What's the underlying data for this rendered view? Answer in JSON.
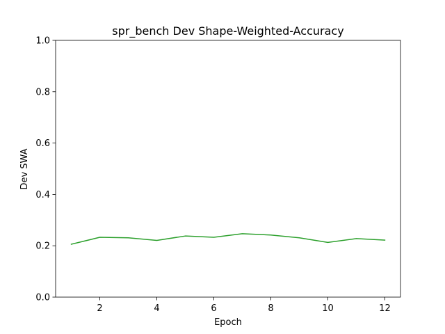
{
  "chart_data": {
    "type": "line",
    "title": "spr_bench Dev Shape-Weighted-Accuracy",
    "xlabel": "Epoch",
    "ylabel": "Dev SWA",
    "xlim": [
      0.45,
      12.55
    ],
    "ylim": [
      0.0,
      1.0
    ],
    "x_ticks": [
      2,
      4,
      6,
      8,
      10,
      12
    ],
    "y_ticks": [
      0.0,
      0.2,
      0.4,
      0.6,
      0.8,
      1.0
    ],
    "x_tick_labels": [
      "2",
      "4",
      "6",
      "8",
      "10",
      "12"
    ],
    "y_tick_labels": [
      "0.0",
      "0.2",
      "0.4",
      "0.6",
      "0.8",
      "1.0"
    ],
    "grid": false,
    "series": [
      {
        "color": "#2ca02c",
        "x": [
          1,
          2,
          3,
          4,
          5,
          6,
          7,
          8,
          9,
          10,
          11,
          12
        ],
        "y": [
          0.206,
          0.233,
          0.231,
          0.221,
          0.238,
          0.233,
          0.247,
          0.242,
          0.231,
          0.213,
          0.228,
          0.222
        ]
      }
    ]
  }
}
